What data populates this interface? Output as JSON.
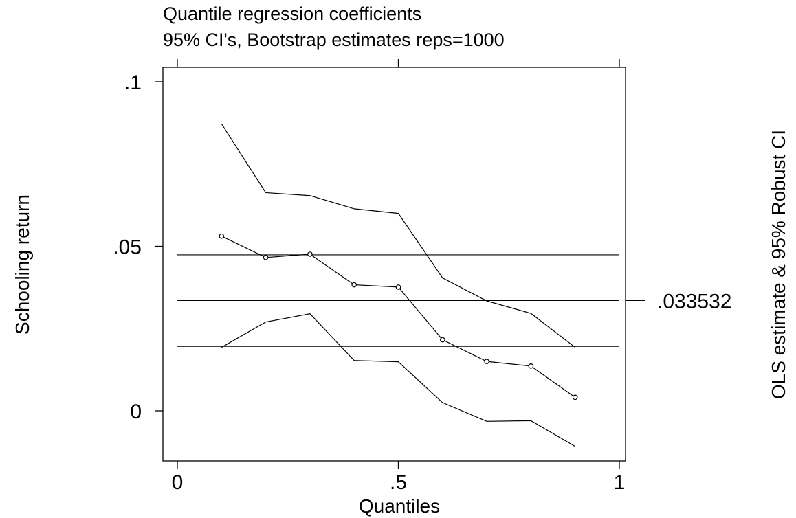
{
  "chart_data": {
    "type": "line",
    "title": "Quantile regression coefficients",
    "subtitle": "95% CI's, Bootstrap estimates reps=1000",
    "xlabel": "Quantiles",
    "ylabel": "Schooling return",
    "ylabel_right": "OLS estimate & 95% Robust CI",
    "xlim": [
      0,
      1
    ],
    "ylim": [
      -0.015,
      0.1
    ],
    "x_ticks": [
      0,
      0.5,
      1
    ],
    "x_tick_labels": [
      "0",
      ".5",
      "1"
    ],
    "y_ticks": [
      0,
      0.05,
      0.1
    ],
    "y_tick_labels": [
      "0",
      ".05",
      ".1"
    ],
    "grid": false,
    "x": [
      0.1,
      0.2,
      0.3,
      0.4,
      0.5,
      0.6,
      0.7,
      0.8,
      0.9
    ],
    "series": [
      {
        "values": [
          0.0872,
          0.0663,
          0.0654,
          0.0614,
          0.06,
          0.0404,
          0.0334,
          0.0296,
          0.0193
        ],
        "marker": "none"
      },
      {
        "values": [
          0.0531,
          0.0466,
          0.0476,
          0.0383,
          0.0376,
          0.0216,
          0.015,
          0.0136,
          0.0041
        ],
        "marker": "circle"
      },
      {
        "values": [
          0.0193,
          0.027,
          0.0295,
          0.0153,
          0.0149,
          0.0025,
          -0.0032,
          -0.003,
          -0.0108
        ],
        "marker": "none"
      }
    ],
    "ols": {
      "estimate": 0.033532,
      "estimate_label": ".033532",
      "ci_lower": 0.0196,
      "ci_upper": 0.0474
    }
  }
}
